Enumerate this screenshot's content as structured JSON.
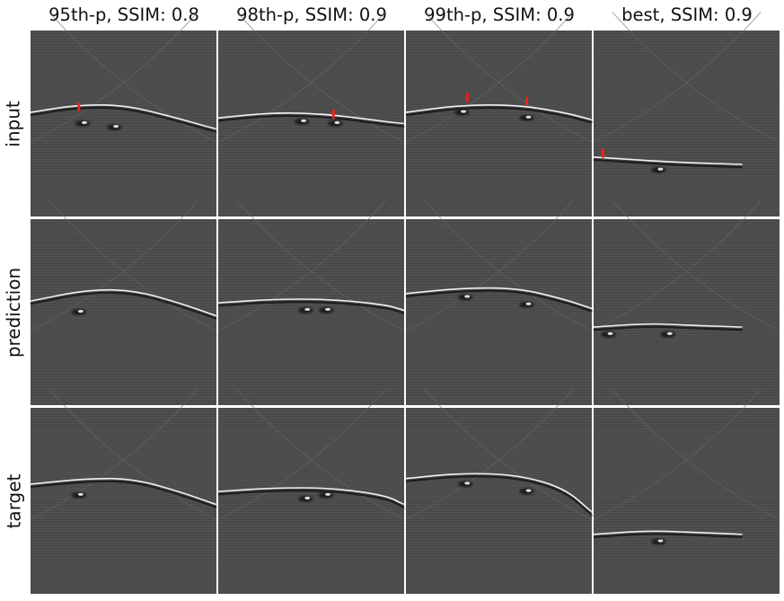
{
  "columns": [
    {
      "title": "95th-p, SSIM: 0.8"
    },
    {
      "title": "98th-p, SSIM: 0.9"
    },
    {
      "title": "99th-p, SSIM: 0.9"
    },
    {
      "title": "best, SSIM: 0.9"
    }
  ],
  "rows": [
    {
      "label": "input"
    },
    {
      "label": "prediction"
    },
    {
      "label": "target"
    }
  ],
  "colors": {
    "panel_background": "#4a4a4a",
    "reflector": "#f0f0f0",
    "marker": "#e8231c",
    "grid_gap": "#ffffff"
  },
  "panels": [
    [
      {
        "curve": [
          [
            0,
            0.44
          ],
          [
            0.25,
            0.4
          ],
          [
            0.5,
            0.4
          ],
          [
            0.75,
            0.46
          ],
          [
            1,
            0.53
          ]
        ],
        "blobs": [
          [
            0.28,
            0.5
          ],
          [
            0.45,
            0.52
          ]
        ],
        "markers": [
          [
            0.26,
            0.41
          ]
        ]
      },
      {
        "curve": [
          [
            0,
            0.47
          ],
          [
            0.3,
            0.44
          ],
          [
            0.6,
            0.45
          ],
          [
            0.9,
            0.49
          ],
          [
            1,
            0.5
          ]
        ],
        "blobs": [
          [
            0.45,
            0.49
          ],
          [
            0.63,
            0.5
          ]
        ],
        "markers": [
          [
            0.62,
            0.45
          ]
        ]
      },
      {
        "curve": [
          [
            0,
            0.44
          ],
          [
            0.3,
            0.4
          ],
          [
            0.6,
            0.4
          ],
          [
            0.85,
            0.44
          ],
          [
            1,
            0.48
          ]
        ],
        "blobs": [
          [
            0.3,
            0.44
          ],
          [
            0.65,
            0.47
          ]
        ],
        "markers": [
          [
            0.33,
            0.36
          ],
          [
            0.65,
            0.38
          ]
        ]
      },
      {
        "curve": [
          [
            0,
            0.68
          ],
          [
            0.3,
            0.7
          ],
          [
            0.5,
            0.71
          ],
          [
            0.8,
            0.72
          ]
        ],
        "blobs": [
          [
            0.35,
            0.75
          ]
        ],
        "markers": [
          [
            0.05,
            0.66
          ]
        ]
      }
    ],
    [
      {
        "curve": [
          [
            0,
            0.44
          ],
          [
            0.3,
            0.38
          ],
          [
            0.55,
            0.38
          ],
          [
            0.8,
            0.45
          ],
          [
            1,
            0.52
          ]
        ],
        "blobs": [
          [
            0.26,
            0.5
          ]
        ],
        "markers": []
      },
      {
        "curve": [
          [
            0,
            0.45
          ],
          [
            0.3,
            0.43
          ],
          [
            0.6,
            0.43
          ],
          [
            0.9,
            0.46
          ],
          [
            1,
            0.49
          ]
        ],
        "blobs": [
          [
            0.47,
            0.49
          ],
          [
            0.58,
            0.49
          ]
        ],
        "markers": []
      },
      {
        "curve": [
          [
            0,
            0.4
          ],
          [
            0.3,
            0.37
          ],
          [
            0.6,
            0.37
          ],
          [
            0.85,
            0.43
          ],
          [
            1,
            0.48
          ]
        ],
        "blobs": [
          [
            0.32,
            0.42
          ],
          [
            0.65,
            0.46
          ]
        ],
        "markers": []
      },
      {
        "curve": [
          [
            0,
            0.58
          ],
          [
            0.3,
            0.56
          ],
          [
            0.5,
            0.57
          ],
          [
            0.8,
            0.58
          ]
        ],
        "blobs": [
          [
            0.08,
            0.62
          ],
          [
            0.4,
            0.62
          ]
        ],
        "markers": []
      }
    ],
    [
      {
        "curve": [
          [
            0,
            0.41
          ],
          [
            0.3,
            0.38
          ],
          [
            0.55,
            0.38
          ],
          [
            0.8,
            0.45
          ],
          [
            1,
            0.52
          ]
        ],
        "blobs": [
          [
            0.26,
            0.47
          ]
        ],
        "markers": []
      },
      {
        "curve": [
          [
            0,
            0.45
          ],
          [
            0.3,
            0.43
          ],
          [
            0.6,
            0.43
          ],
          [
            0.9,
            0.47
          ],
          [
            1,
            0.52
          ]
        ],
        "blobs": [
          [
            0.47,
            0.49
          ],
          [
            0.58,
            0.47
          ]
        ],
        "markers": []
      },
      {
        "curve": [
          [
            0,
            0.38
          ],
          [
            0.3,
            0.35
          ],
          [
            0.6,
            0.36
          ],
          [
            0.85,
            0.43
          ],
          [
            1,
            0.56
          ]
        ],
        "blobs": [
          [
            0.32,
            0.41
          ],
          [
            0.65,
            0.45
          ]
        ],
        "markers": []
      },
      {
        "curve": [
          [
            0,
            0.68
          ],
          [
            0.3,
            0.66
          ],
          [
            0.55,
            0.67
          ],
          [
            0.8,
            0.68
          ]
        ],
        "blobs": [
          [
            0.35,
            0.72
          ]
        ],
        "markers": []
      }
    ]
  ]
}
